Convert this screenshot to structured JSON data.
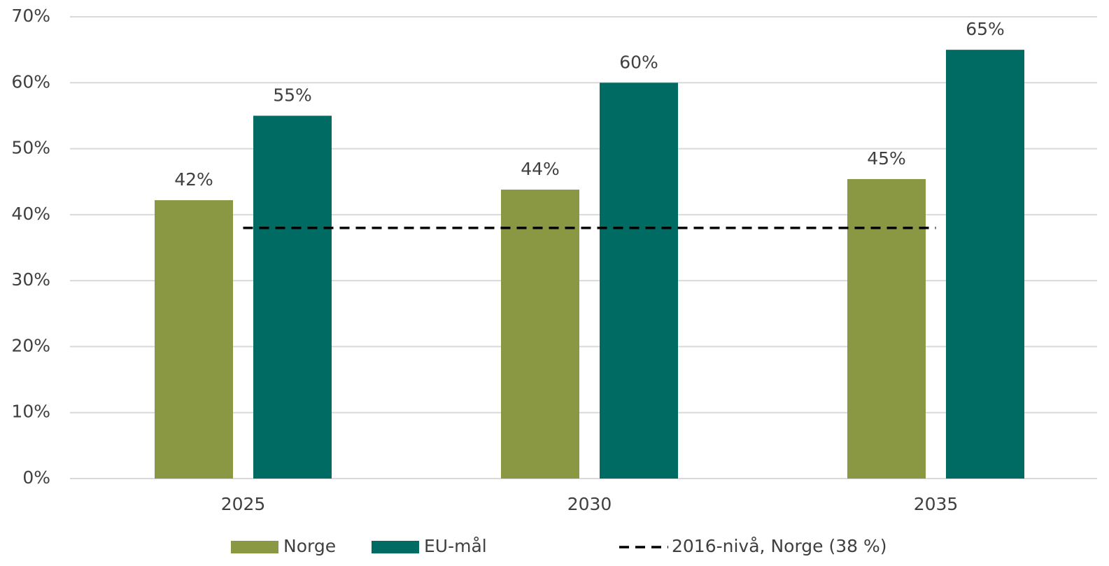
{
  "chart_data": {
    "type": "bar",
    "categories": [
      "2025",
      "2030",
      "2035"
    ],
    "series": [
      {
        "name": "Norge",
        "color": "#8a9843",
        "values": [
          42.2,
          43.8,
          45.4
        ],
        "value_labels": [
          "42%",
          "44%",
          "45%"
        ]
      },
      {
        "name": "EU-mål",
        "color": "#006b63",
        "values": [
          55,
          60,
          65
        ],
        "value_labels": [
          "55%",
          "60%",
          "65%"
        ]
      },
      {
        "name": "2016-nivå, Norge (38 %)",
        "type": "line",
        "dashed": true,
        "color": "#000000",
        "values": [
          38,
          38,
          38
        ]
      }
    ],
    "ylim": [
      0,
      70
    ],
    "yticks": [
      {
        "value": 0,
        "label": "0%"
      },
      {
        "value": 10,
        "label": "10%"
      },
      {
        "value": 20,
        "label": "20%"
      },
      {
        "value": 30,
        "label": "30%"
      },
      {
        "value": 40,
        "label": "40%"
      },
      {
        "value": 50,
        "label": "50%"
      },
      {
        "value": 60,
        "label": "60%"
      },
      {
        "value": 70,
        "label": "70%"
      }
    ],
    "grid": true,
    "legend": "bottom"
  }
}
